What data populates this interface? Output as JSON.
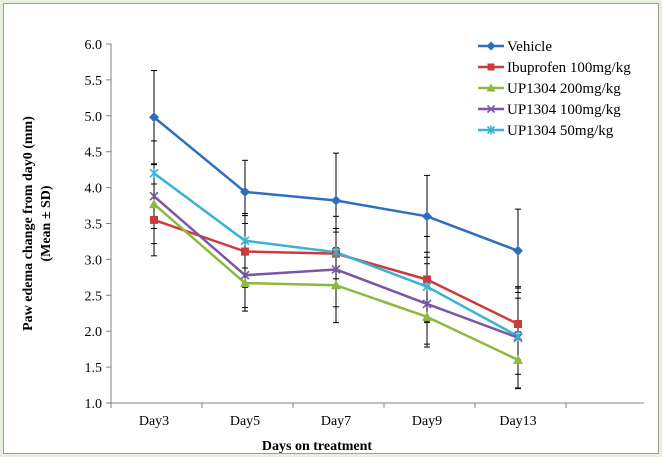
{
  "chart_data": {
    "type": "line",
    "title": "",
    "xlabel": "Days on treatment",
    "ylabel_line1": "Paw edema change from day0 (mm)",
    "ylabel_line2": "(Mean ± SD)",
    "ylim": [
      1.0,
      6.0
    ],
    "ytick_step": 0.5,
    "yticks": [
      "1.0",
      "1.5",
      "2.0",
      "2.5",
      "3.0",
      "3.5",
      "4.0",
      "4.5",
      "5.0",
      "5.5",
      "6.0"
    ],
    "categories": [
      "Day3",
      "Day5",
      "Day7",
      "Day9",
      "Day13"
    ],
    "grid": false,
    "legend_position": "top-right",
    "series": [
      {
        "name": "Vehicle",
        "color": "#2e6fbd",
        "marker": "diamond",
        "values": [
          4.98,
          3.94,
          3.82,
          3.6,
          3.12
        ],
        "error": [
          0.65,
          0.44,
          0.66,
          0.57,
          0.58
        ]
      },
      {
        "name": "Ibuprofen 100mg/kg",
        "color": "#cc3b3b",
        "marker": "square",
        "values": [
          3.55,
          3.11,
          3.08,
          2.72,
          2.1
        ],
        "error": [
          0.5,
          0.5,
          0.35,
          0.6,
          0.5
        ]
      },
      {
        "name": "UP1304 200mg/kg",
        "color": "#8db93e",
        "marker": "triangle",
        "values": [
          3.77,
          2.67,
          2.64,
          2.2,
          1.6
        ],
        "error": [
          0.55,
          0.39,
          0.52,
          0.42,
          0.39
        ]
      },
      {
        "name": "UP1304 100mg/kg",
        "color": "#7b56a6",
        "marker": "x",
        "values": [
          3.88,
          2.78,
          2.86,
          2.38,
          1.91
        ],
        "error": [
          0.45,
          0.45,
          0.52,
          0.56,
          0.71
        ]
      },
      {
        "name": "UP1304 50mg/kg",
        "color": "#3bb2d1",
        "marker": "asterisk",
        "values": [
          4.2,
          3.26,
          3.1,
          2.62,
          1.93
        ],
        "error": [
          0.45,
          0.38,
          0.5,
          0.48,
          0.53
        ]
      }
    ]
  }
}
